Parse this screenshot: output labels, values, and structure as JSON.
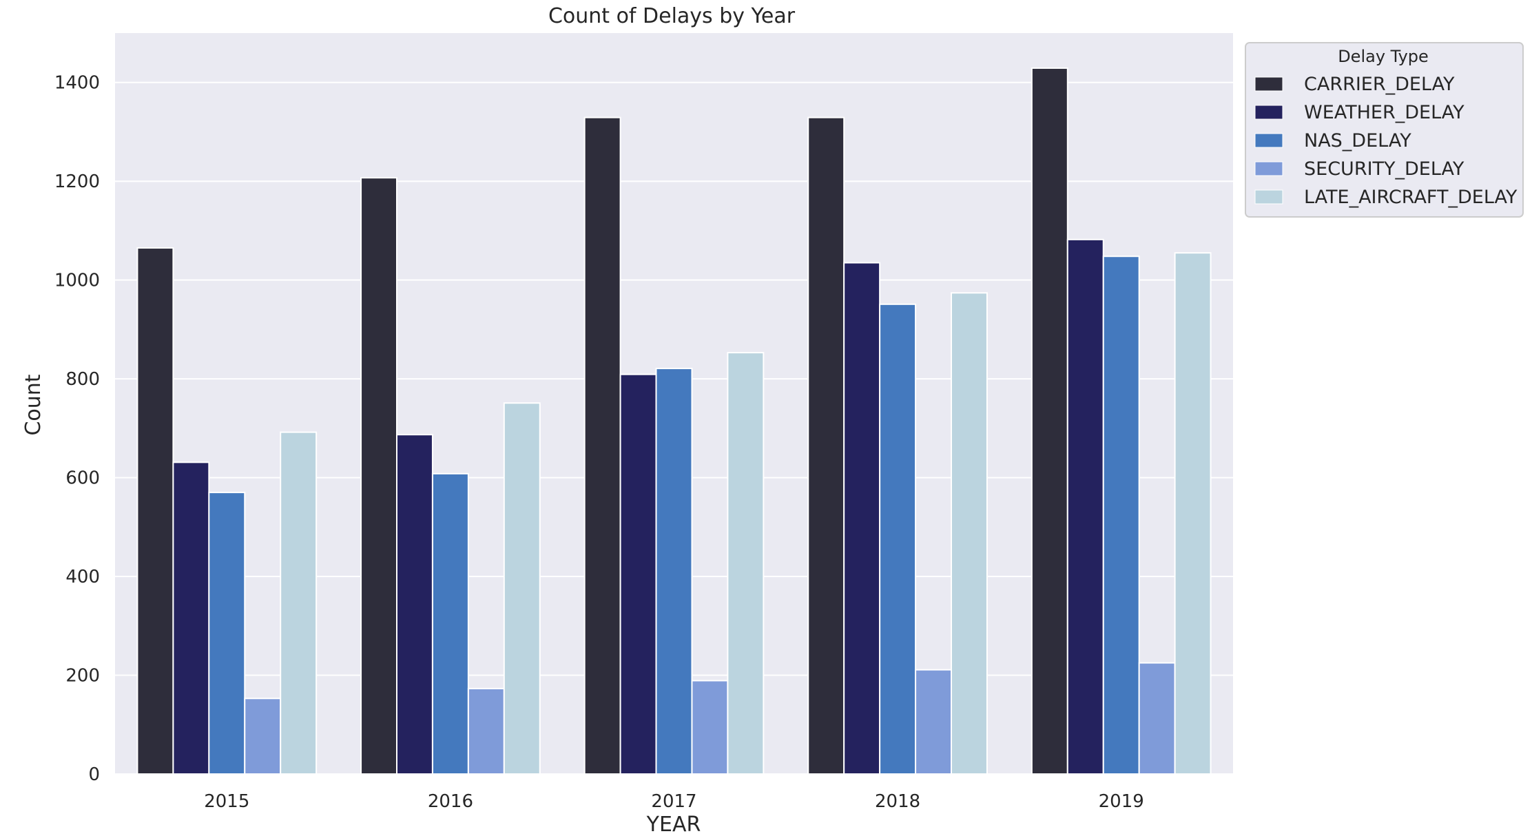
{
  "chart_data": {
    "type": "bar",
    "title": "Count of Delays by Year",
    "xlabel": "YEAR",
    "ylabel": "Count",
    "categories": [
      "2015",
      "2016",
      "2017",
      "2018",
      "2019"
    ],
    "ylim": [
      0,
      1500
    ],
    "yticks": [
      0,
      200,
      400,
      600,
      800,
      1000,
      1200,
      1400
    ],
    "grid": true,
    "legend": {
      "title": "Delay Type",
      "placement": "outside-top-right"
    },
    "series": [
      {
        "name": "CARRIER_DELAY",
        "color": "#2e2d3b",
        "values": [
          1065,
          1207,
          1329,
          1329,
          1429
        ]
      },
      {
        "name": "WEATHER_DELAY",
        "color": "#24225e",
        "values": [
          631,
          687,
          809,
          1035,
          1082
        ]
      },
      {
        "name": "NAS_DELAY",
        "color": "#4479be",
        "values": [
          570,
          608,
          821,
          951,
          1048
        ]
      },
      {
        "name": "SECURITY_DELAY",
        "color": "#7f9bd9",
        "values": [
          153,
          173,
          189,
          211,
          225
        ]
      },
      {
        "name": "LATE_AIRCRAFT_DELAY",
        "color": "#bbd4df",
        "values": [
          692,
          751,
          853,
          974,
          1055
        ]
      }
    ]
  }
}
